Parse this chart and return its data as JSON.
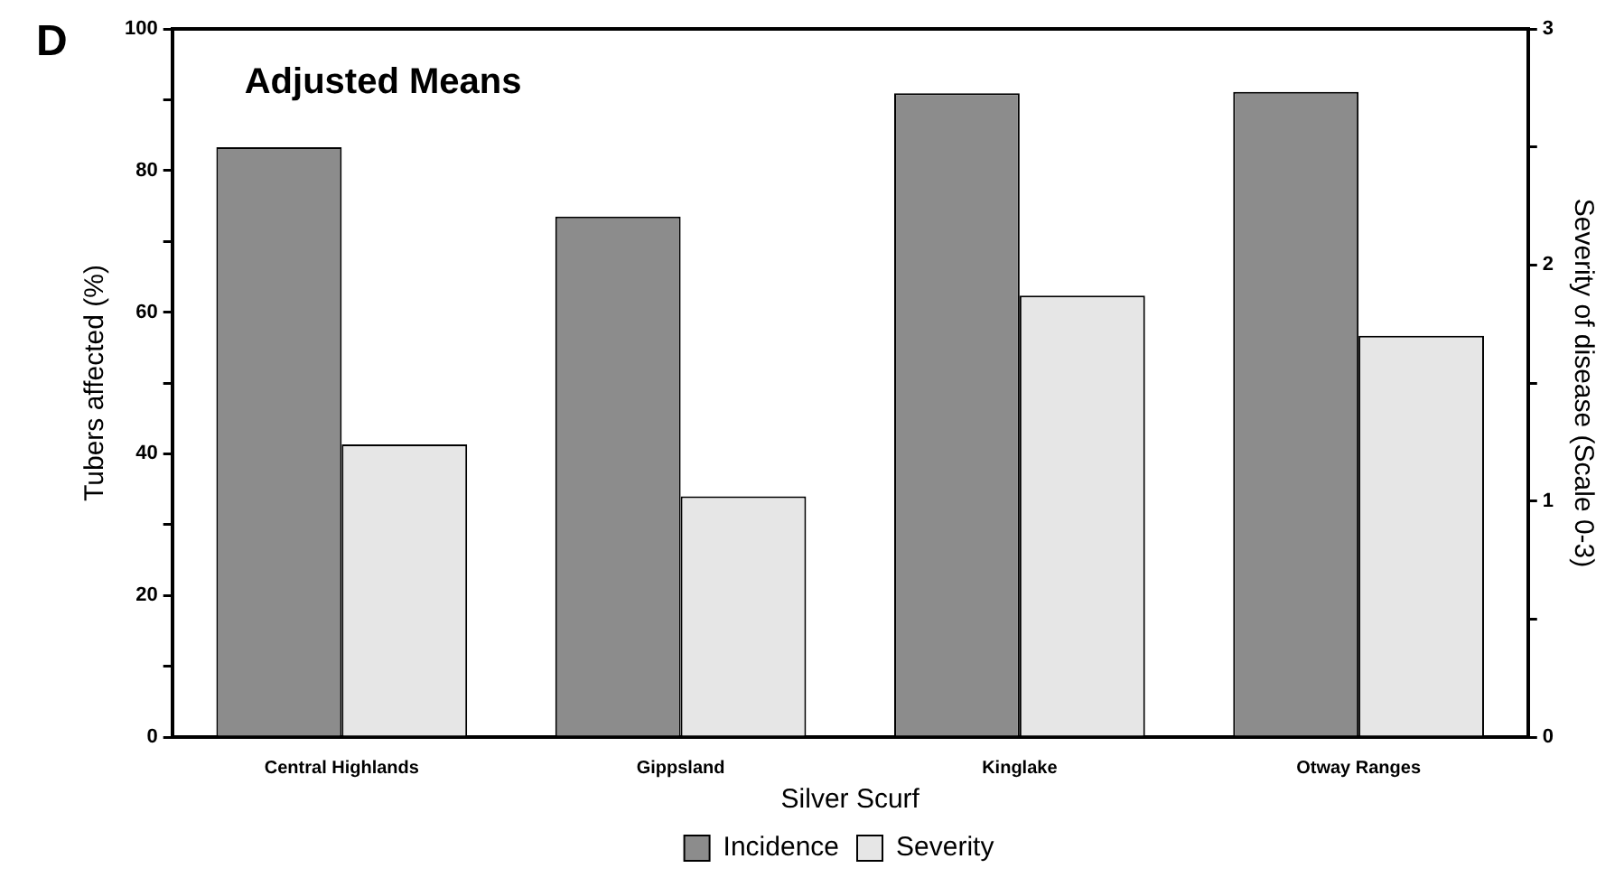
{
  "chart_data": {
    "type": "bar",
    "annotations": [
      "D",
      "Adjusted Means"
    ],
    "xlabel": "Silver Scurf",
    "ylabel": "Tubers affected (%)",
    "y2label": "Severity of disease (Scale 0-3)",
    "categories": [
      "Central Highlands",
      "Gippsland",
      "Kinglake",
      "Otway Ranges"
    ],
    "series": [
      {
        "name": "Incidence",
        "color": "#8c8c8c",
        "values": [
          83.3,
          73.5,
          90.9,
          91.1
        ]
      },
      {
        "name": "Severity",
        "color": "#e6e6e6",
        "axis": "y2",
        "values": [
          1.24,
          1.02,
          1.87,
          1.7
        ]
      }
    ],
    "ylim": [
      0,
      100
    ],
    "yticks": [
      0,
      {
        "value": 10,
        "label": null
      },
      20,
      {
        "value": 30,
        "label": null
      },
      40,
      {
        "value": 50,
        "label": null
      },
      60,
      {
        "value": 70,
        "label": null
      },
      80,
      {
        "value": 90,
        "label": null
      },
      100
    ],
    "y2lim": [
      0,
      3
    ],
    "y2ticks": [
      0,
      {
        "value": 0.5,
        "label": null
      },
      1,
      {
        "value": 1.5,
        "label": null
      },
      2,
      {
        "value": 2.5,
        "label": null
      },
      3
    ],
    "grid": false,
    "legend": "bottom"
  }
}
